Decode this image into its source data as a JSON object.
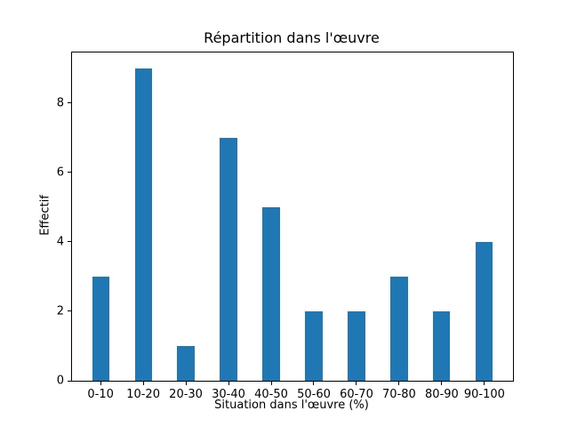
{
  "chart_data": {
    "type": "bar",
    "title": "Répartition dans l'œuvre",
    "xlabel": "Situation dans l'œuvre (%)",
    "ylabel": "Effectif",
    "categories": [
      "0-10",
      "10-20",
      "20-30",
      "30-40",
      "40-50",
      "50-60",
      "60-70",
      "70-80",
      "80-90",
      "90-100"
    ],
    "values": [
      3,
      9,
      1,
      7,
      5,
      2,
      2,
      3,
      2,
      4
    ],
    "yticks": [
      0,
      2,
      4,
      6,
      8
    ],
    "ylim": [
      0,
      9.45
    ],
    "xlim": [
      -0.67,
      9.67
    ],
    "bar_width": 0.4,
    "bar_color": "#1f77b4",
    "axis_color": "#000000",
    "background_color": "#ffffff",
    "grid": false,
    "legend_position": "none"
  }
}
